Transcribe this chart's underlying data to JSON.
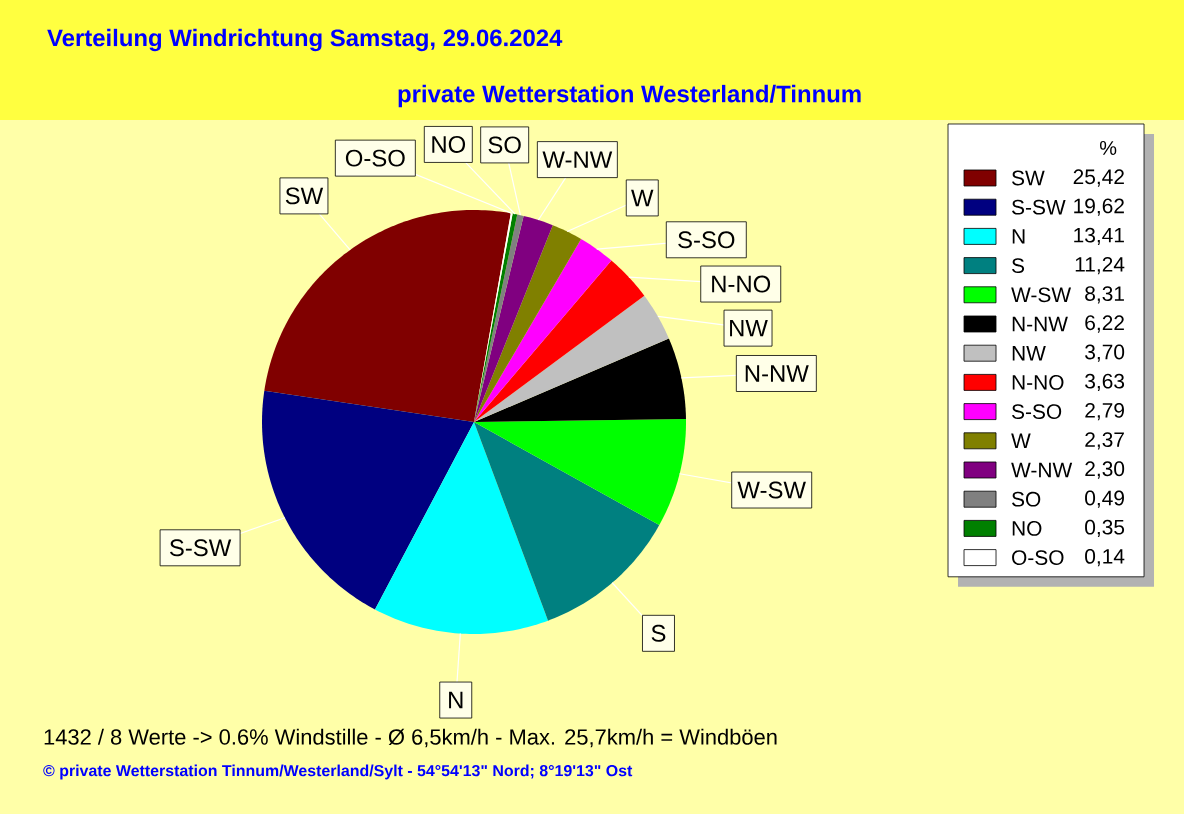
{
  "chart_data": {
    "type": "pie",
    "title": "Verteilung Windrichtung   Samstag, 29.06.2024",
    "subtitle": "private Wetterstation Westerland/Tinnum",
    "categories": [
      "SW",
      "S-SW",
      "N",
      "S",
      "W-SW",
      "N-NW",
      "NW",
      "N-NO",
      "S-SO",
      "W",
      "W-NW",
      "SO",
      "NO",
      "O-SO"
    ],
    "values": [
      25.42,
      19.62,
      13.41,
      11.24,
      8.31,
      6.22,
      3.7,
      3.63,
      2.79,
      2.37,
      2.3,
      0.49,
      0.35,
      0.14
    ],
    "value_labels": [
      "25,42",
      "19,62",
      "13,41",
      "11,24",
      "8,31",
      "6,22",
      "3,70",
      "3,63",
      "2,79",
      "2,37",
      "2,30",
      "0,49",
      "0,35",
      "0,14"
    ],
    "colors": [
      "#800000",
      "#000080",
      "#00ffff",
      "#008080",
      "#00ff00",
      "#000000",
      "#c0c0c0",
      "#ff0000",
      "#ff00ff",
      "#808000",
      "#800080",
      "#808080",
      "#008000",
      "#ffffff"
    ],
    "legend": "right",
    "legend_title": "%",
    "annotations": [
      "1432 / 8 Werte  -> 0.6% Windstille   -   Ø 6,5km/h  -  Max. 25,7km/h = Windböen",
      "© private Wetterstation Tinnum/Westerland/Sylt   -   54°54'13\" Nord; 8°19'13\" Ost"
    ]
  }
}
